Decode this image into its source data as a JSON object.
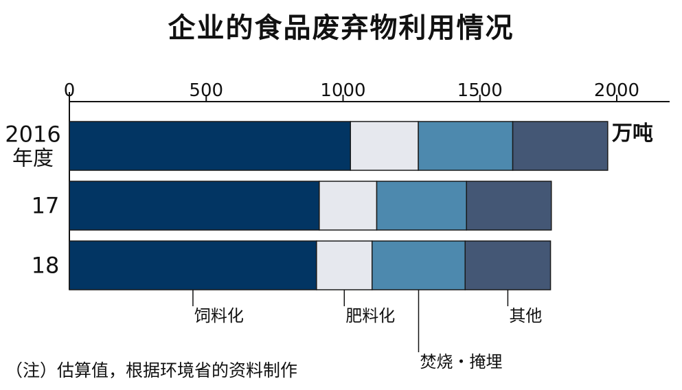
{
  "chart_data": {
    "type": "bar",
    "orientation": "horizontal",
    "stacked": true,
    "title": "企业的食品废弃物利用情况",
    "unit_label": "万吨",
    "note": "（注）估算值，根据环境省的资料制作",
    "x_ticks": [
      "0",
      "500",
      "1000",
      "1500",
      "2000"
    ],
    "xlim": [
      0,
      2200
    ],
    "categories": [
      {
        "line1": "2016",
        "line2": "年度"
      },
      {
        "line1": "17",
        "line2": ""
      },
      {
        "line1": "18",
        "line2": ""
      }
    ],
    "series": [
      {
        "name": "饲料化",
        "color": "#023563",
        "values": [
          1027,
          913,
          903
        ]
      },
      {
        "name": "肥料化",
        "color": "#e6e8ee",
        "values": [
          248,
          210,
          203
        ]
      },
      {
        "name": "焚烧・掩埋",
        "color": "#4d89ae",
        "values": [
          345,
          328,
          340
        ]
      },
      {
        "name": "其他",
        "color": "#445775",
        "values": [
          347,
          310,
          312
        ]
      }
    ],
    "grid": false,
    "legend": "leader-line labels below bars"
  }
}
